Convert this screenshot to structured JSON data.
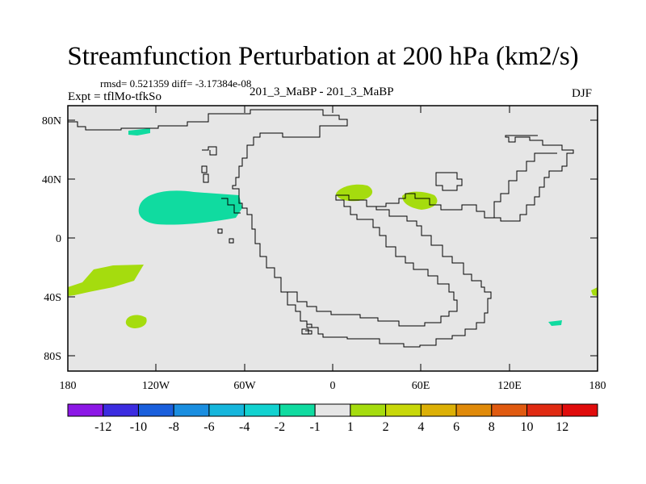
{
  "title": "Streamfunction Perturbation at 200 hPa (km2/s)",
  "stats": {
    "rmsd_label": "rmsd= 0.521359 diff= -3.17384e-08"
  },
  "left_label": "Expt = tflMo-tfkSo",
  "center_label": "201_3_MaBP - 201_3_MaBP",
  "right_label": "DJF",
  "axes": {
    "lat_ticks": [
      "80N",
      "40N",
      "0",
      "40S",
      "80S"
    ],
    "lon_ticks": [
      "180",
      "120W",
      "60W",
      "0",
      "60E",
      "120E",
      "180"
    ]
  },
  "colors": {
    "ocean": "#e6e6e6",
    "land_outline": "#000000",
    "positive_light": "#a5dc0e",
    "negative_light": "#10dba0"
  },
  "colorbar": {
    "labels": [
      "-12",
      "-10",
      "-8",
      "-6",
      "-4",
      "-2",
      "-1",
      "1",
      "2",
      "4",
      "6",
      "8",
      "10",
      "12"
    ],
    "colors": [
      "#8c18e6",
      "#3c2ce0",
      "#1a5fdc",
      "#1a8ee0",
      "#16b6dc",
      "#12d2d0",
      "#10dba0",
      "#e6e6e6",
      "#a5dc0e",
      "#c8d80a",
      "#dcb006",
      "#e08a0a",
      "#e05a10",
      "#e02a12",
      "#e00c0c"
    ]
  }
}
